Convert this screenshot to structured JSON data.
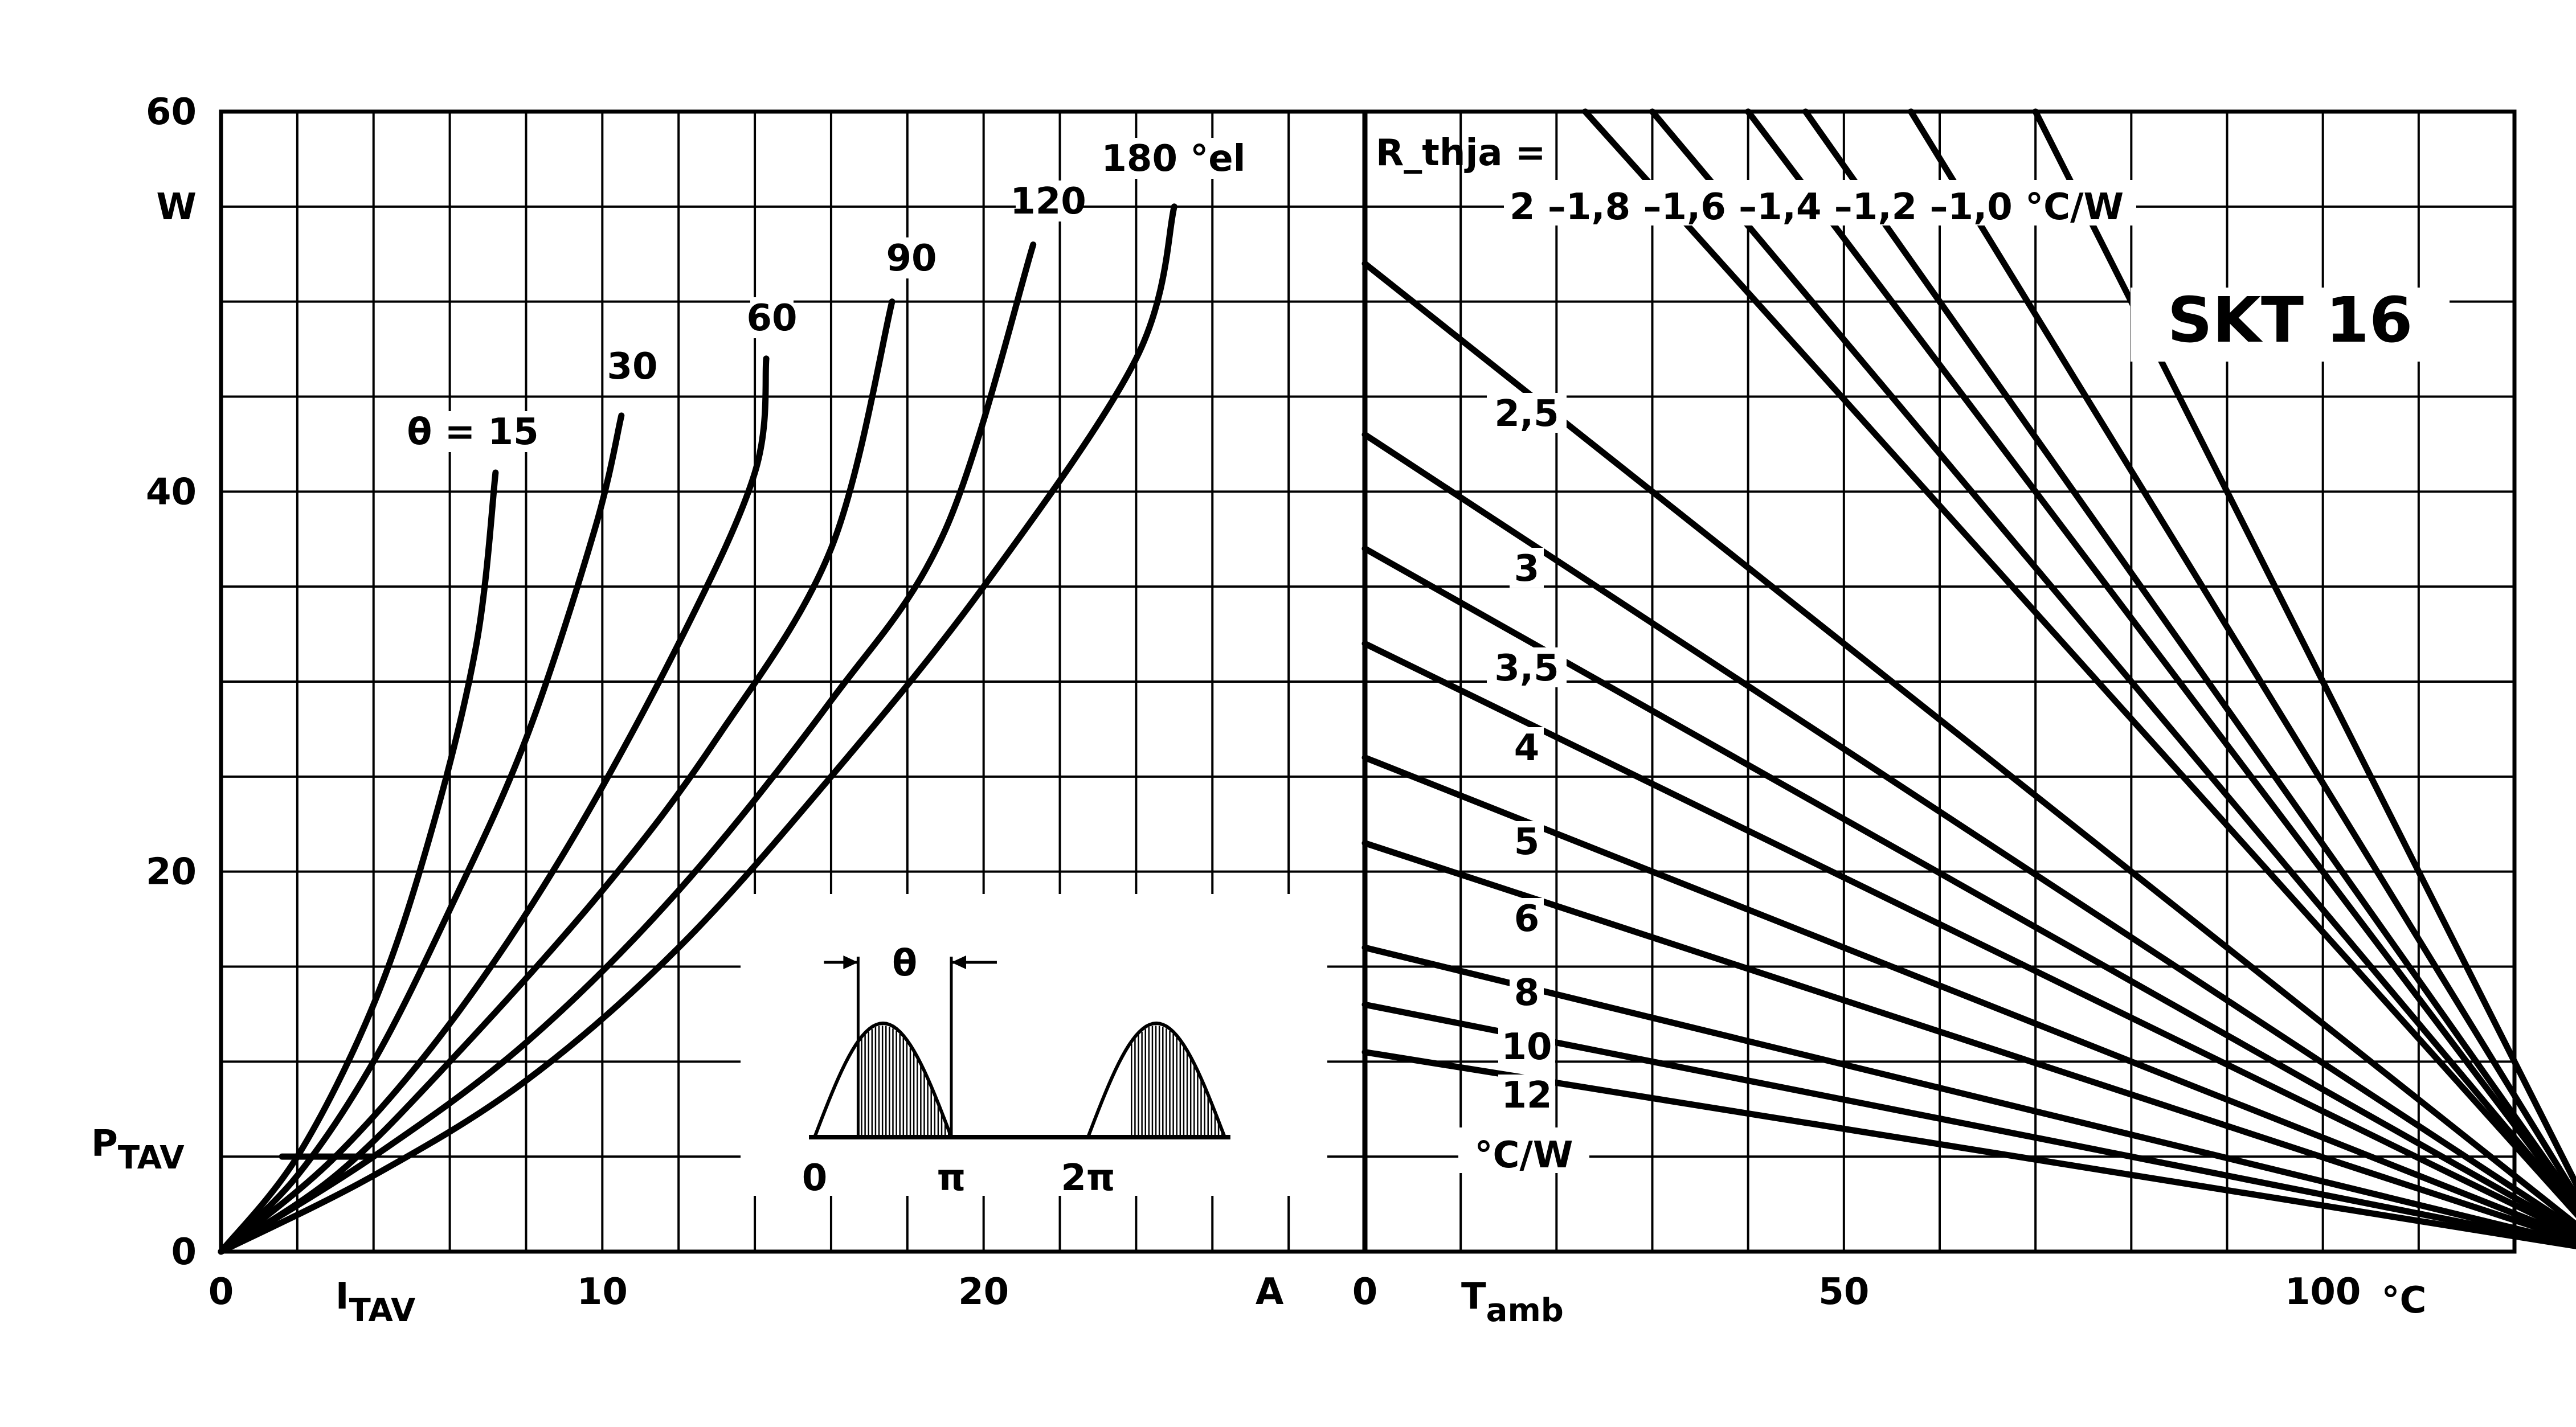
{
  "title": "SKT 16",
  "chart_data": [
    {
      "type": "line",
      "xlabel": "I_TAV",
      "x_unit": "A",
      "ylabel": "P_TAV",
      "y_unit": "W",
      "xlim": [
        0,
        30
      ],
      "ylim": [
        0,
        60
      ],
      "x_ticks": [
        "0",
        "10",
        "20"
      ],
      "y_ticks": [
        "0",
        "20",
        "40",
        "60"
      ],
      "series_label_prefix": "θ =",
      "series_unit": "°el",
      "series": [
        {
          "name": "15",
          "points": [
            [
              0,
              0
            ],
            [
              2,
              5
            ],
            [
              4,
              13
            ],
            [
              5.5,
              22
            ],
            [
              6.7,
              32
            ],
            [
              7.2,
              41
            ]
          ]
        },
        {
          "name": "30",
          "points": [
            [
              0,
              0
            ],
            [
              2,
              4
            ],
            [
              4,
              10
            ],
            [
              6,
              18
            ],
            [
              8,
              27
            ],
            [
              9.8,
              38
            ],
            [
              10.5,
              44
            ]
          ]
        },
        {
          "name": "60",
          "points": [
            [
              0,
              0
            ],
            [
              3,
              5
            ],
            [
              6,
              12
            ],
            [
              9,
              21
            ],
            [
              12,
              32
            ],
            [
              14,
              41
            ],
            [
              14.3,
              47
            ]
          ]
        },
        {
          "name": "90",
          "points": [
            [
              0,
              0
            ],
            [
              3,
              4
            ],
            [
              6,
              10
            ],
            [
              10,
              19
            ],
            [
              13,
              27
            ],
            [
              16,
              37
            ],
            [
              17.6,
              50
            ]
          ]
        },
        {
          "name": "120",
          "points": [
            [
              0,
              0
            ],
            [
              4,
              5
            ],
            [
              8,
              11
            ],
            [
              12,
              19
            ],
            [
              16,
              29
            ],
            [
              19,
              38
            ],
            [
              21.3,
              53
            ]
          ]
        },
        {
          "name": "180",
          "points": [
            [
              0,
              0
            ],
            [
              4,
              4
            ],
            [
              8,
              9
            ],
            [
              12,
              16
            ],
            [
              16,
              25
            ],
            [
              20,
              35
            ],
            [
              24,
              47
            ],
            [
              25,
              55
            ]
          ]
        }
      ],
      "inset": {
        "theta_label": "θ",
        "x_ticks": [
          "0",
          "π",
          "2π"
        ]
      }
    },
    {
      "type": "line",
      "xlabel": "T_amb",
      "x_unit": "°C",
      "xlim": [
        0,
        120
      ],
      "ylim": [
        0,
        60
      ],
      "x_ticks": [
        "0",
        "50",
        "100"
      ],
      "legend_title": "R_thja =",
      "series_unit": "°C/W",
      "convergence_point": [
        130,
        0
      ],
      "series": [
        {
          "name": "1,0",
          "points": [
            [
              70,
              60
            ],
            [
              130,
              0
            ]
          ]
        },
        {
          "name": "1,2",
          "points": [
            [
              57,
              60
            ],
            [
              130,
              0
            ]
          ]
        },
        {
          "name": "1,4",
          "points": [
            [
              46,
              60
            ],
            [
              130,
              0
            ]
          ]
        },
        {
          "name": "1,6",
          "points": [
            [
              40,
              60
            ],
            [
              130,
              0
            ]
          ]
        },
        {
          "name": "1,8",
          "points": [
            [
              30,
              60
            ],
            [
              130,
              0
            ]
          ]
        },
        {
          "name": "2",
          "points": [
            [
              23,
              60
            ],
            [
              130,
              0
            ]
          ]
        },
        {
          "name": "2,5",
          "points": [
            [
              0,
              52
            ],
            [
              130,
              0
            ]
          ]
        },
        {
          "name": "3",
          "points": [
            [
              0,
              43
            ],
            [
              130,
              0
            ]
          ]
        },
        {
          "name": "3,5",
          "points": [
            [
              0,
              37
            ],
            [
              130,
              0
            ]
          ]
        },
        {
          "name": "4",
          "points": [
            [
              0,
              32
            ],
            [
              130,
              0
            ]
          ]
        },
        {
          "name": "5",
          "points": [
            [
              0,
              26
            ],
            [
              130,
              0
            ]
          ]
        },
        {
          "name": "6",
          "points": [
            [
              0,
              21.5
            ],
            [
              130,
              0
            ]
          ]
        },
        {
          "name": "8",
          "points": [
            [
              0,
              16
            ],
            [
              130,
              0
            ]
          ]
        },
        {
          "name": "10",
          "points": [
            [
              0,
              13
            ],
            [
              130,
              0
            ]
          ]
        },
        {
          "name": "12",
          "points": [
            [
              0,
              10.5
            ],
            [
              130,
              0
            ]
          ]
        }
      ]
    }
  ]
}
